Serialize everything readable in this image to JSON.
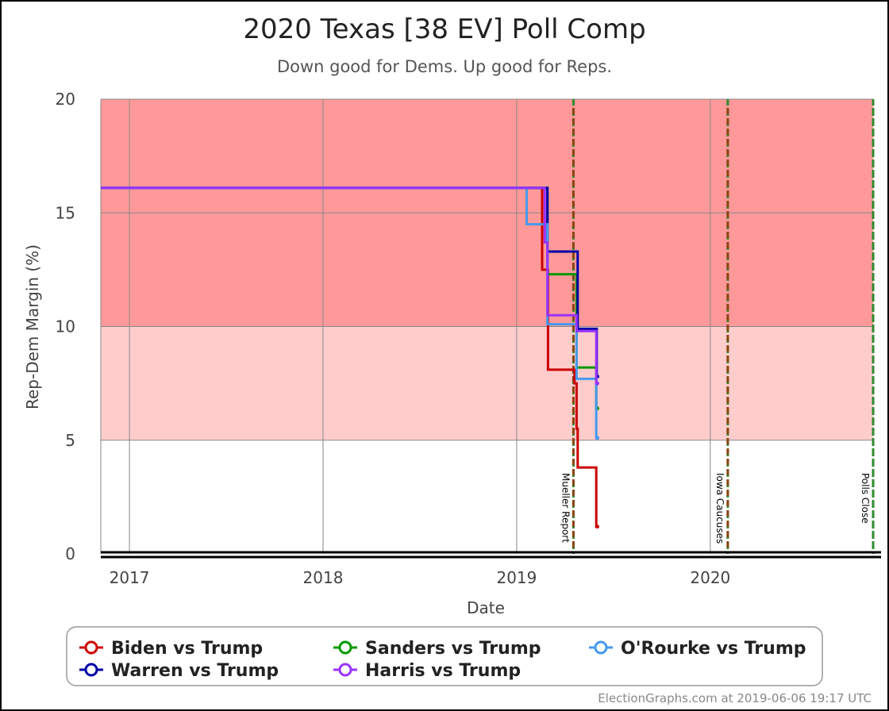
{
  "chart_data": {
    "type": "line",
    "title": "2020 Texas [38 EV] Poll Comp",
    "subtitle": "Down good for Dems. Up good for Reps.",
    "xlabel": "Date",
    "ylabel": "Rep-Dem Margin (%)",
    "ylim": [
      0,
      20
    ],
    "xlim": [
      "2016-11-08",
      "2020-11-03"
    ],
    "grid": true,
    "legend_position": "bottom",
    "yticks": [
      {
        "value": 0,
        "label": "0"
      },
      {
        "value": 5,
        "label": "5"
      },
      {
        "value": 10,
        "label": "10"
      },
      {
        "value": 15,
        "label": "15"
      },
      {
        "value": 20,
        "label": "20"
      }
    ],
    "xticks": [
      {
        "value": "2017-01-01",
        "label": "2017"
      },
      {
        "value": "2018-01-01",
        "label": "2018"
      },
      {
        "value": "2019-01-01",
        "label": "2019"
      },
      {
        "value": "2020-01-01",
        "label": "2020"
      }
    ],
    "bands": [
      {
        "from": 10,
        "to": 20,
        "color": "#ff9999"
      },
      {
        "from": 5,
        "to": 10,
        "color": "#ffcccc"
      }
    ],
    "events": [
      {
        "date": "2019-04-18",
        "label": "Mueller Report",
        "color": "#8b4513"
      },
      {
        "date": "2020-02-03",
        "label": "Iowa Caucuses",
        "color": "#8b4513"
      },
      {
        "date": "2020-11-03",
        "label": "Polls Close",
        "color": "#2e8b2e"
      }
    ],
    "series": [
      {
        "name": "Biden vs Trump",
        "color": "#cc0000",
        "points": [
          [
            "2016-11-08",
            16.1
          ],
          [
            "2019-02-18",
            16.1
          ],
          [
            "2019-02-18",
            12.5
          ],
          [
            "2019-03-01",
            12.5
          ],
          [
            "2019-03-01",
            8.1
          ],
          [
            "2019-04-20",
            8.1
          ],
          [
            "2019-04-20",
            7.5
          ],
          [
            "2019-04-24",
            7.5
          ],
          [
            "2019-04-24",
            5.5
          ],
          [
            "2019-04-26",
            5.5
          ],
          [
            "2019-04-26",
            3.8
          ],
          [
            "2019-05-31",
            3.8
          ],
          [
            "2019-05-31",
            1.2
          ],
          [
            "2019-06-02",
            1.2
          ]
        ]
      },
      {
        "name": "Sanders vs Trump",
        "color": "#009900",
        "points": [
          [
            "2016-11-08",
            16.1
          ],
          [
            "2019-02-28",
            16.1
          ],
          [
            "2019-02-28",
            12.3
          ],
          [
            "2019-04-24",
            12.3
          ],
          [
            "2019-04-24",
            8.2
          ],
          [
            "2019-05-31",
            8.2
          ],
          [
            "2019-05-31",
            6.4
          ],
          [
            "2019-06-02",
            6.4
          ]
        ]
      },
      {
        "name": "O'Rourke vs Trump",
        "color": "#4499ee",
        "points": [
          [
            "2016-11-08",
            16.1
          ],
          [
            "2019-01-20",
            16.1
          ],
          [
            "2019-01-20",
            14.5
          ],
          [
            "2019-02-28",
            14.5
          ],
          [
            "2019-02-28",
            10.1
          ],
          [
            "2019-04-24",
            10.1
          ],
          [
            "2019-04-24",
            7.7
          ],
          [
            "2019-05-31",
            7.7
          ],
          [
            "2019-05-31",
            5.1
          ],
          [
            "2019-06-02",
            5.1
          ]
        ]
      },
      {
        "name": "Warren vs Trump",
        "color": "#0000aa",
        "points": [
          [
            "2016-11-08",
            16.1
          ],
          [
            "2019-02-28",
            16.1
          ],
          [
            "2019-02-28",
            13.3
          ],
          [
            "2019-04-26",
            13.3
          ],
          [
            "2019-04-26",
            9.9
          ],
          [
            "2019-06-01",
            9.9
          ],
          [
            "2019-06-01",
            7.8
          ],
          [
            "2019-06-02",
            7.8
          ]
        ]
      },
      {
        "name": "Harris vs Trump",
        "color": "#9933ff",
        "points": [
          [
            "2016-11-08",
            16.1
          ],
          [
            "2019-02-23",
            16.1
          ],
          [
            "2019-02-23",
            13.7
          ],
          [
            "2019-02-28",
            13.7
          ],
          [
            "2019-02-28",
            10.5
          ],
          [
            "2019-04-24",
            10.5
          ],
          [
            "2019-04-24",
            9.8
          ],
          [
            "2019-05-31",
            9.8
          ],
          [
            "2019-05-31",
            7.5
          ],
          [
            "2019-06-02",
            7.5
          ]
        ]
      }
    ]
  },
  "legend": {
    "items": [
      {
        "label": "Biden vs Trump",
        "color": "#cc0000"
      },
      {
        "label": "Sanders vs Trump",
        "color": "#009900"
      },
      {
        "label": "O'Rourke vs Trump",
        "color": "#4499ee"
      },
      {
        "label": "Warren vs Trump",
        "color": "#0000aa"
      },
      {
        "label": "Harris vs Trump",
        "color": "#9933ff"
      }
    ]
  },
  "credit": "ElectionGraphs.com at 2019-06-06 19:17 UTC"
}
